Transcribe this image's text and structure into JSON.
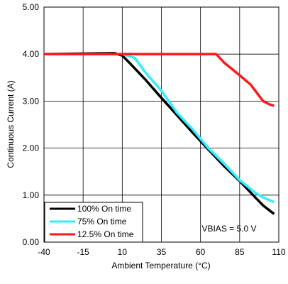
{
  "chart_data": {
    "type": "line",
    "xlabel": "Ambient Temperature (°C)",
    "ylabel": "Continuous Current (A)",
    "xlim": [
      -40,
      110
    ],
    "ylim": [
      0,
      5
    ],
    "x_ticks": [
      "-40",
      "-15",
      "10",
      "35",
      "60",
      "85",
      "110"
    ],
    "y_ticks": [
      "0.00",
      "1.00",
      "2.00",
      "3.00",
      "4.00",
      "5.00"
    ],
    "grid": true,
    "legend_position": "bottom-left",
    "annotation": "VBIAS = 5.0 V",
    "series": [
      {
        "name": "100% On time",
        "color": "#000000",
        "points": [
          [
            -40,
            4.0
          ],
          [
            5,
            4.02
          ],
          [
            10,
            3.97
          ],
          [
            15,
            3.8
          ],
          [
            25,
            3.45
          ],
          [
            35,
            3.07
          ],
          [
            45,
            2.7
          ],
          [
            55,
            2.33
          ],
          [
            65,
            1.97
          ],
          [
            75,
            1.62
          ],
          [
            85,
            1.3
          ],
          [
            95,
            0.95
          ],
          [
            100,
            0.78
          ],
          [
            105,
            0.65
          ],
          [
            107,
            0.6
          ]
        ]
      },
      {
        "name": "75% On time",
        "color": "#33eeff",
        "points": [
          [
            -40,
            4.0
          ],
          [
            10,
            4.0
          ],
          [
            18,
            3.92
          ],
          [
            25,
            3.6
          ],
          [
            35,
            3.22
          ],
          [
            45,
            2.75
          ],
          [
            55,
            2.4
          ],
          [
            65,
            2.0
          ],
          [
            75,
            1.67
          ],
          [
            85,
            1.32
          ],
          [
            95,
            1.05
          ],
          [
            100,
            0.95
          ],
          [
            107,
            0.85
          ]
        ]
      },
      {
        "name": "12.5% On time",
        "color": "#ff1a1a",
        "points": [
          [
            -40,
            4.0
          ],
          [
            70,
            4.0
          ],
          [
            75,
            3.82
          ],
          [
            85,
            3.55
          ],
          [
            92,
            3.35
          ],
          [
            100,
            3.0
          ],
          [
            104,
            2.93
          ],
          [
            107,
            2.9
          ]
        ]
      }
    ]
  }
}
